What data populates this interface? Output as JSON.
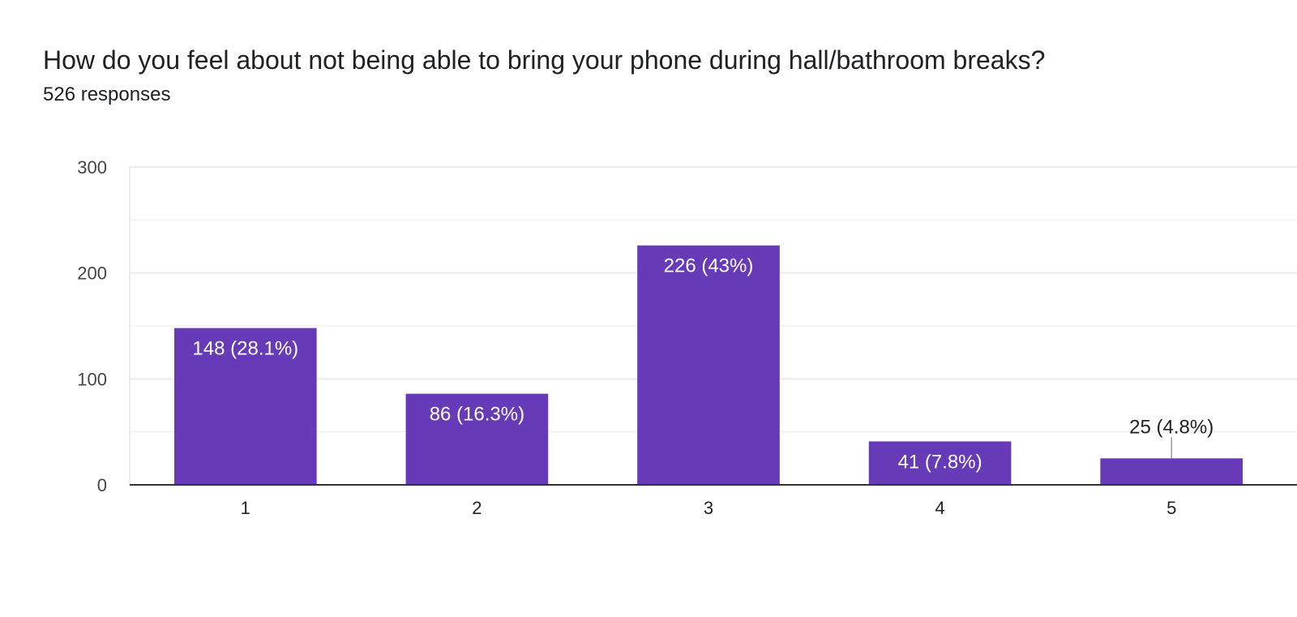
{
  "form": {
    "question": "How do you feel about not being able to bring your phone during hall/bathroom breaks?",
    "responses_text": "526 responses"
  },
  "colors": {
    "bar": "#673ab7",
    "grid": "#ebebeb",
    "axis": "#333333",
    "label_inside": "#ffffff",
    "label_outside": "#222222",
    "leader_line": "#999999"
  },
  "chart_data": {
    "type": "bar",
    "title": "How do you feel about not being able to bring your phone during hall/bathroom breaks?",
    "subtitle": "526 responses",
    "categories": [
      "1",
      "2",
      "3",
      "4",
      "5"
    ],
    "values": [
      148,
      86,
      226,
      41,
      25
    ],
    "data_labels": [
      "148 (28.1%)",
      "86 (16.3%)",
      "226 (43%)",
      "41 (7.8%)",
      "25 (4.8%)"
    ],
    "ylim": [
      0,
      300
    ],
    "yticks": [
      0,
      100,
      200,
      300
    ],
    "minor_gridlines": [
      50,
      150,
      250
    ],
    "xlabel": "",
    "ylabel": "",
    "grid": true,
    "legend": "none"
  }
}
